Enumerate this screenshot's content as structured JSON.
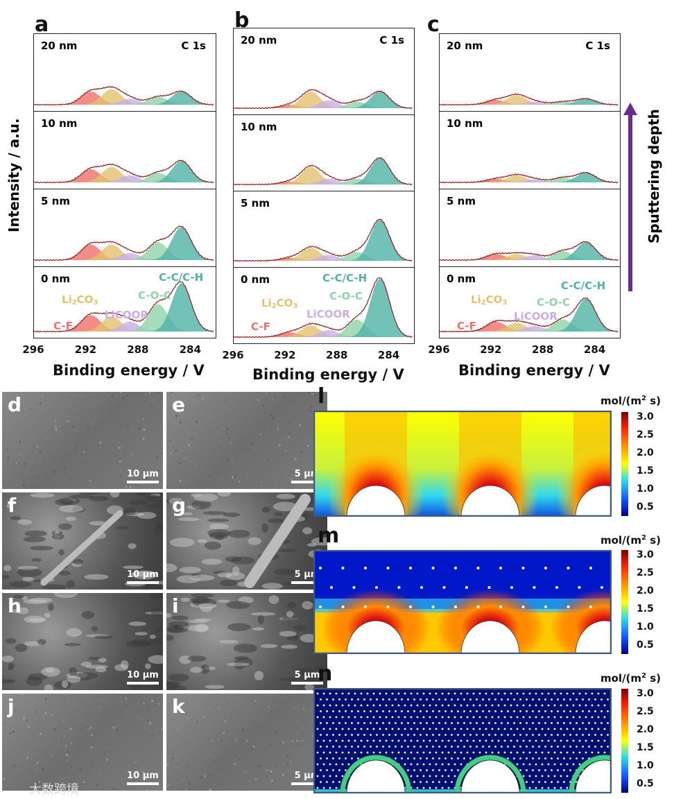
{
  "figure": {
    "y_axis_label": "Intensity / a.u.",
    "sputter_label": "Sputtering depth",
    "sputter_arrow_color": "#6a2c91",
    "watermark": "大数跨境"
  },
  "chart_data": {
    "type": "line",
    "xlabel": "Binding energy / V",
    "ylabel": "Intensity / a.u.",
    "xlim": [
      296,
      282
    ],
    "xticks": [
      "296",
      "292",
      "288",
      "284"
    ],
    "core_level": "C 1s",
    "components": [
      {
        "name": "C-F",
        "label_main": "C-F",
        "label_sub": "",
        "label_tail": "",
        "center": 291.6,
        "color": "#ef6f6c"
      },
      {
        "name": "Li2CO3",
        "label_main": "Li",
        "label_sub": "2",
        "label_tail": "CO",
        "label_sub2": "3",
        "center": 290.0,
        "color": "#e2c26c"
      },
      {
        "name": "LiCOOR",
        "label_main": "LiCOOR",
        "label_sub": "",
        "label_tail": "",
        "center": 288.6,
        "color": "#c9aee6"
      },
      {
        "name": "C-O-C",
        "label_main": "C-O-C",
        "label_sub": "",
        "label_tail": "",
        "center": 286.4,
        "color": "#8fd3a8"
      },
      {
        "name": "C-C/C-H",
        "label_main": "C-C/C-H",
        "label_sub": "",
        "label_tail": "",
        "center": 284.6,
        "color": "#4fb3a6"
      }
    ],
    "panels": [
      {
        "label": "a",
        "depths": [
          {
            "depth": "20 nm",
            "amplitudes": [
              0.22,
              0.26,
              0.1,
              0.13,
              0.22
            ]
          },
          {
            "depth": "10 nm",
            "amplitudes": [
              0.22,
              0.26,
              0.12,
              0.16,
              0.36
            ]
          },
          {
            "depth": "5 nm",
            "amplitudes": [
              0.26,
              0.26,
              0.12,
              0.3,
              0.55
            ]
          },
          {
            "depth": "0 nm",
            "amplitudes": [
              0.3,
              0.28,
              0.18,
              0.5,
              0.88
            ]
          }
        ]
      },
      {
        "label": "b",
        "depths": [
          {
            "depth": "20 nm",
            "amplitudes": [
              0.05,
              0.25,
              0.12,
              0.1,
              0.25
            ]
          },
          {
            "depth": "10 nm",
            "amplitudes": [
              0.05,
              0.3,
              0.1,
              0.1,
              0.45
            ]
          },
          {
            "depth": "5 nm",
            "amplitudes": [
              0.05,
              0.22,
              0.1,
              0.15,
              0.7
            ]
          },
          {
            "depth": "0 nm",
            "amplitudes": [
              0.08,
              0.2,
              0.12,
              0.3,
              1.0
            ]
          }
        ]
      },
      {
        "label": "c",
        "depths": [
          {
            "depth": "20 nm",
            "amplitudes": [
              0.08,
              0.16,
              0.05,
              0.05,
              0.1
            ]
          },
          {
            "depth": "10 nm",
            "amplitudes": [
              0.06,
              0.12,
              0.05,
              0.08,
              0.16
            ]
          },
          {
            "depth": "5 nm",
            "amplitudes": [
              0.1,
              0.1,
              0.08,
              0.15,
              0.3
            ]
          },
          {
            "depth": "0 nm",
            "amplitudes": [
              0.18,
              0.16,
              0.1,
              0.22,
              0.6
            ]
          }
        ]
      }
    ]
  },
  "sem": [
    {
      "label": "d",
      "scale": "10 µm"
    },
    {
      "label": "e",
      "scale": "5 µm"
    },
    {
      "label": "f",
      "scale": "10 µm"
    },
    {
      "label": "g",
      "scale": "5 µm"
    },
    {
      "label": "h",
      "scale": "10 µm"
    },
    {
      "label": "i",
      "scale": "5 µm"
    },
    {
      "label": "j",
      "scale": "10 µm"
    },
    {
      "label": "k",
      "scale": "5 µm"
    }
  ],
  "simulations": [
    {
      "label": "l",
      "unit_main": "mol/(m",
      "unit_sup": "2",
      "unit_tail": " s)",
      "colorbar_ticks": [
        "3.0",
        "2.5",
        "2.0",
        "1.5",
        "1.0",
        "0.5"
      ]
    },
    {
      "label": "m",
      "unit_main": "mol/(m",
      "unit_sup": "2",
      "unit_tail": " s)",
      "colorbar_ticks": [
        "3.0",
        "2.5",
        "2.0",
        "1.5",
        "1.0",
        "0.5"
      ]
    },
    {
      "label": "n",
      "unit_main": "mol/(m",
      "unit_sup": "2",
      "unit_tail": " s)",
      "colorbar_ticks": [
        "3.0",
        "2.5",
        "2.0",
        "1.5",
        "1.0",
        "0.5"
      ]
    }
  ]
}
